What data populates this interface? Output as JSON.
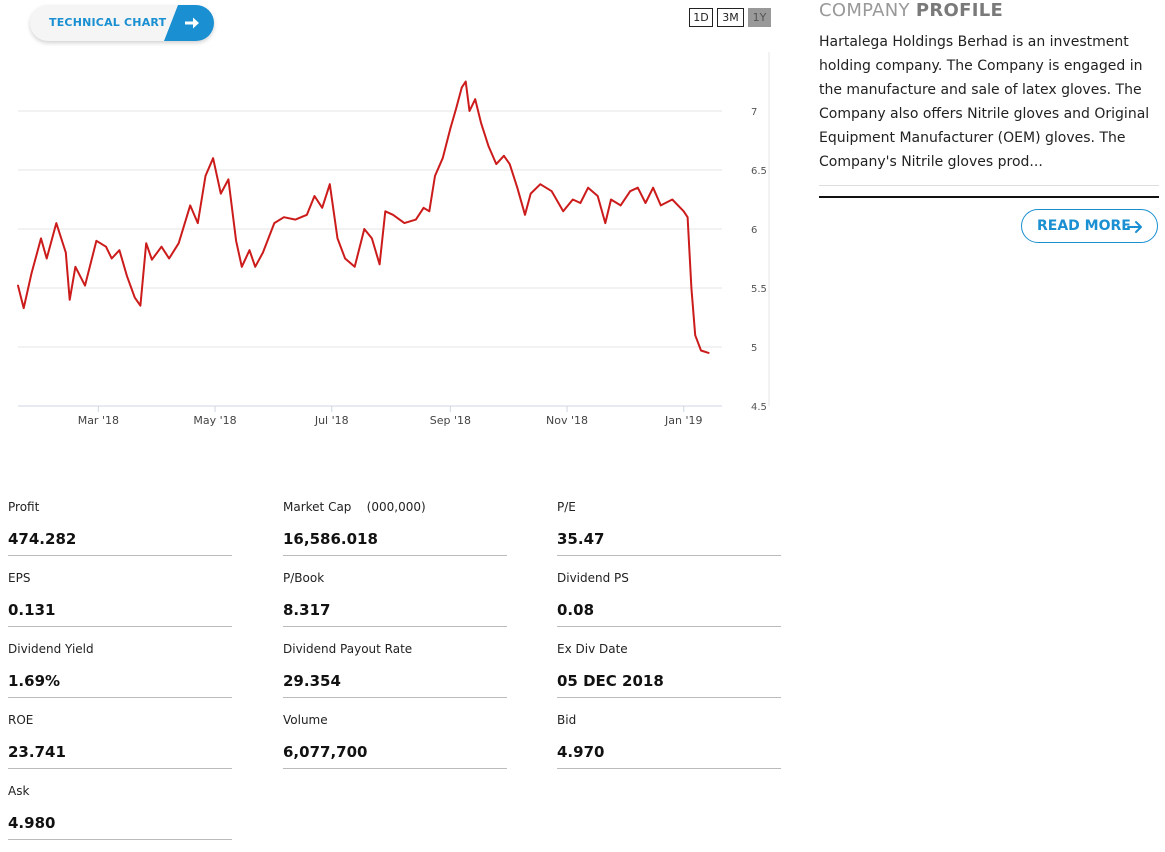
{
  "technical_chart": {
    "label": "TECHNICAL CHART",
    "icon": "arrow-right-icon"
  },
  "ranges": [
    {
      "label": "1D",
      "active": false
    },
    {
      "label": "3M",
      "active": false
    },
    {
      "label": "1Y",
      "active": true
    }
  ],
  "chart_data": {
    "type": "line",
    "x_tick_labels": [
      "Mar '18",
      "May '18",
      "Jul '18",
      "Sep '18",
      "Nov '18",
      "Jan '19"
    ],
    "x_range": [
      "2018-01-18",
      "2019-01-21"
    ],
    "ylim": [
      4.5,
      7.5
    ],
    "y_tick_labels": [
      "4.5",
      "5",
      "5.5",
      "6",
      "6.5",
      "7"
    ],
    "grid": true,
    "color": "#cc1b1b",
    "series": [
      {
        "points": [
          [
            "2018-01-18",
            5.52
          ],
          [
            "2018-01-21",
            5.33
          ],
          [
            "2018-01-25",
            5.62
          ],
          [
            "2018-01-30",
            5.92
          ],
          [
            "2018-02-02",
            5.75
          ],
          [
            "2018-02-07",
            6.05
          ],
          [
            "2018-02-12",
            5.8
          ],
          [
            "2018-02-14",
            5.4
          ],
          [
            "2018-02-17",
            5.68
          ],
          [
            "2018-02-22",
            5.52
          ],
          [
            "2018-02-28",
            5.9
          ],
          [
            "2018-03-05",
            5.85
          ],
          [
            "2018-03-08",
            5.75
          ],
          [
            "2018-03-12",
            5.82
          ],
          [
            "2018-03-16",
            5.6
          ],
          [
            "2018-03-20",
            5.42
          ],
          [
            "2018-03-23",
            5.35
          ],
          [
            "2018-03-26",
            5.88
          ],
          [
            "2018-03-29",
            5.74
          ],
          [
            "2018-04-03",
            5.85
          ],
          [
            "2018-04-07",
            5.75
          ],
          [
            "2018-04-12",
            5.88
          ],
          [
            "2018-04-18",
            6.2
          ],
          [
            "2018-04-22",
            6.05
          ],
          [
            "2018-04-26",
            6.45
          ],
          [
            "2018-04-30",
            6.6
          ],
          [
            "2018-05-04",
            6.3
          ],
          [
            "2018-05-08",
            6.42
          ],
          [
            "2018-05-12",
            5.9
          ],
          [
            "2018-05-15",
            5.68
          ],
          [
            "2018-05-19",
            5.82
          ],
          [
            "2018-05-22",
            5.68
          ],
          [
            "2018-05-26",
            5.8
          ],
          [
            "2018-06-01",
            6.05
          ],
          [
            "2018-06-06",
            6.1
          ],
          [
            "2018-06-12",
            6.08
          ],
          [
            "2018-06-18",
            6.12
          ],
          [
            "2018-06-22",
            6.28
          ],
          [
            "2018-06-26",
            6.18
          ],
          [
            "2018-06-30",
            6.38
          ],
          [
            "2018-07-04",
            5.92
          ],
          [
            "2018-07-08",
            5.75
          ],
          [
            "2018-07-13",
            5.68
          ],
          [
            "2018-07-18",
            6.0
          ],
          [
            "2018-07-22",
            5.92
          ],
          [
            "2018-07-26",
            5.7
          ],
          [
            "2018-07-29",
            6.15
          ],
          [
            "2018-08-02",
            6.12
          ],
          [
            "2018-08-08",
            6.05
          ],
          [
            "2018-08-14",
            6.08
          ],
          [
            "2018-08-18",
            6.18
          ],
          [
            "2018-08-21",
            6.15
          ],
          [
            "2018-08-24",
            6.45
          ],
          [
            "2018-08-28",
            6.6
          ],
          [
            "2018-09-01",
            6.85
          ],
          [
            "2018-09-04",
            7.02
          ],
          [
            "2018-09-07",
            7.2
          ],
          [
            "2018-09-09",
            7.25
          ],
          [
            "2018-09-11",
            7.0
          ],
          [
            "2018-09-14",
            7.1
          ],
          [
            "2018-09-17",
            6.9
          ],
          [
            "2018-09-21",
            6.7
          ],
          [
            "2018-09-25",
            6.55
          ],
          [
            "2018-09-29",
            6.62
          ],
          [
            "2018-10-02",
            6.55
          ],
          [
            "2018-10-06",
            6.35
          ],
          [
            "2018-10-10",
            6.12
          ],
          [
            "2018-10-13",
            6.3
          ],
          [
            "2018-10-18",
            6.38
          ],
          [
            "2018-10-24",
            6.32
          ],
          [
            "2018-10-30",
            6.15
          ],
          [
            "2018-11-04",
            6.25
          ],
          [
            "2018-11-08",
            6.22
          ],
          [
            "2018-11-12",
            6.35
          ],
          [
            "2018-11-17",
            6.28
          ],
          [
            "2018-11-21",
            6.05
          ],
          [
            "2018-11-24",
            6.25
          ],
          [
            "2018-11-29",
            6.2
          ],
          [
            "2018-12-04",
            6.32
          ],
          [
            "2018-12-08",
            6.35
          ],
          [
            "2018-12-12",
            6.22
          ],
          [
            "2018-12-16",
            6.35
          ],
          [
            "2018-12-20",
            6.2
          ],
          [
            "2018-12-26",
            6.25
          ],
          [
            "2019-01-01",
            6.15
          ],
          [
            "2019-01-03",
            6.1
          ],
          [
            "2019-01-05",
            5.5
          ],
          [
            "2019-01-07",
            5.1
          ],
          [
            "2019-01-10",
            4.97
          ],
          [
            "2019-01-14",
            4.95
          ]
        ]
      }
    ]
  },
  "stats": [
    {
      "label": "Profit",
      "value": "474.282"
    },
    {
      "label": "Market Cap    (000,000)",
      "value": "16,586.018"
    },
    {
      "label": "P/E",
      "value": "35.47"
    },
    {
      "label": "EPS",
      "value": "0.131"
    },
    {
      "label": "P/Book",
      "value": "8.317"
    },
    {
      "label": "Dividend PS",
      "value": "0.08"
    },
    {
      "label": "Dividend Yield",
      "value": "1.69%"
    },
    {
      "label": "Dividend Payout Rate",
      "value": "29.354"
    },
    {
      "label": "Ex Div Date",
      "value": "05 DEC 2018"
    },
    {
      "label": "ROE",
      "value": "23.741"
    },
    {
      "label": "Volume",
      "value": "6,077,700"
    },
    {
      "label": "Bid",
      "value": "4.970"
    },
    {
      "label": "Ask",
      "value": "4.980"
    }
  ],
  "company_profile": {
    "title_light": "COMPANY ",
    "title_bold": "PROFILE",
    "description": "Hartalega Holdings Berhad is an investment holding company. The Company is engaged in the manufacture and sale of latex gloves. The Company also offers Nitrile gloves and Original Equipment Manufacturer (OEM) gloves. The Company's Nitrile gloves prod...",
    "read_more_label": "READ MORE",
    "read_more_icon": "arrow-right-icon"
  }
}
